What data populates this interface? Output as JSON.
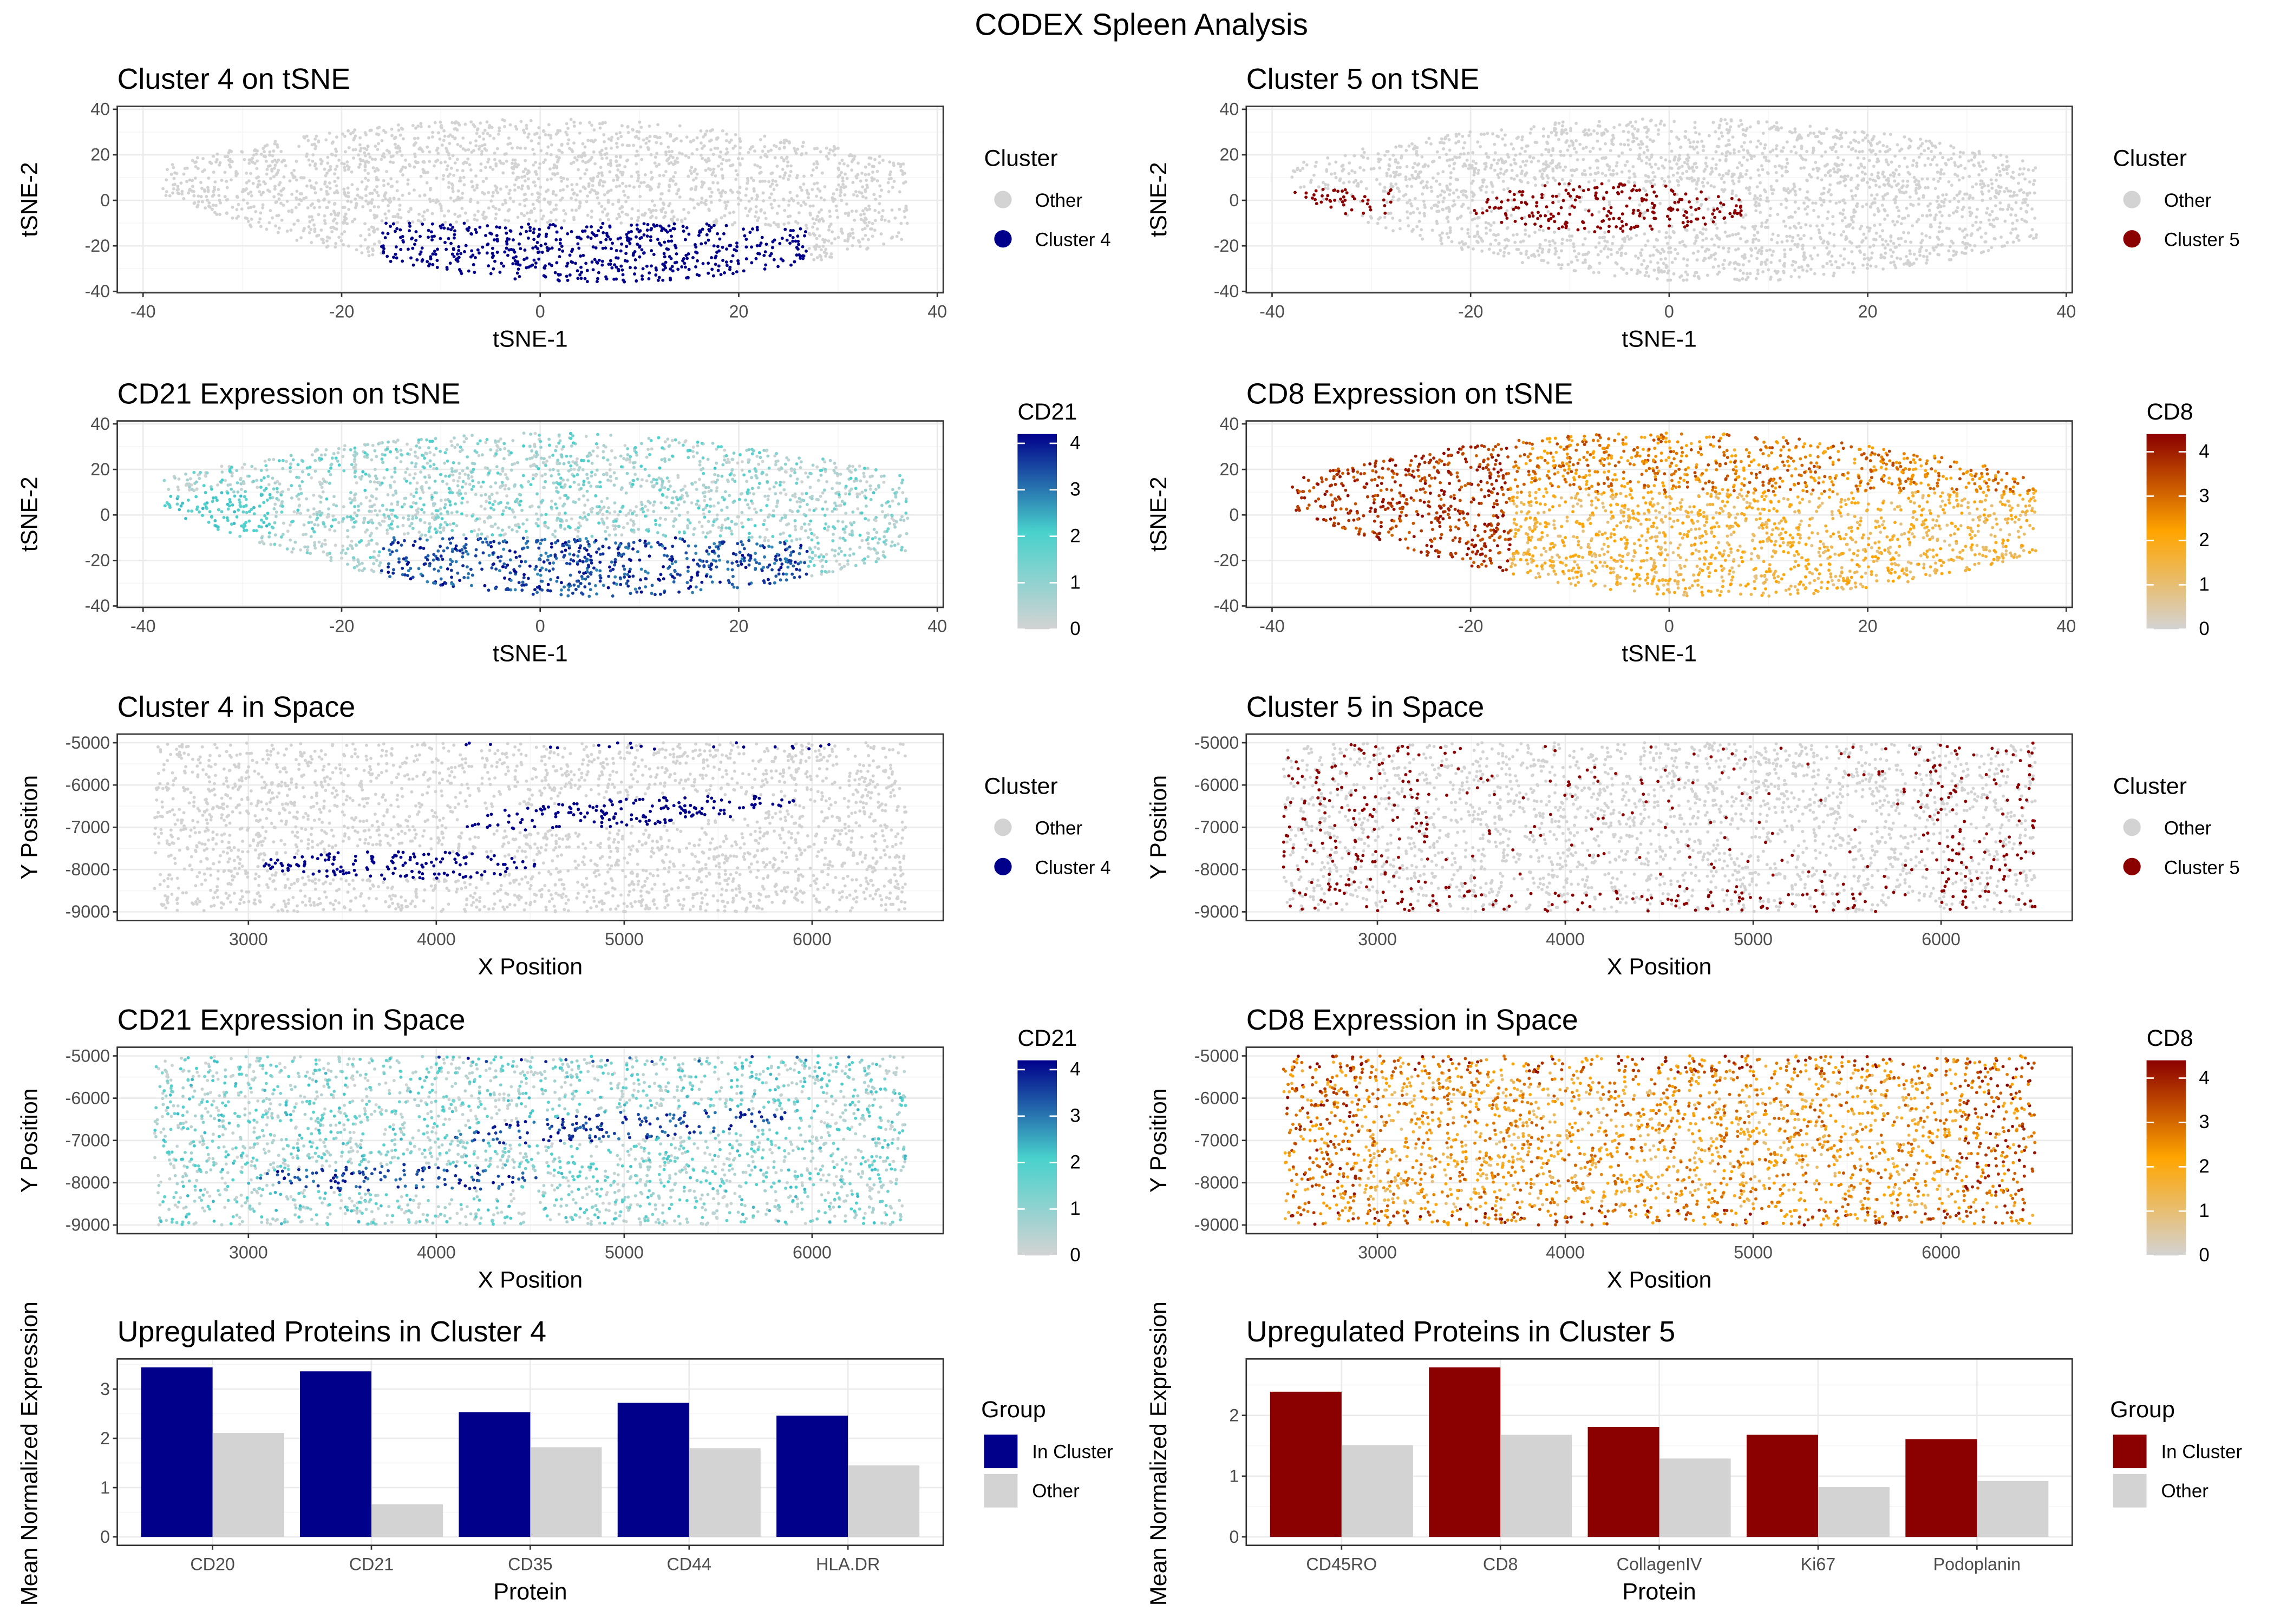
{
  "title": "CODEX Spleen Analysis",
  "colors": {
    "other": "#D3D3D3",
    "cluster4": "#00008B",
    "cluster5": "#8B0000",
    "cd21_gradient": [
      "#D3D3D3",
      "#48D1CC",
      "#00008B"
    ],
    "cd8_gradient": [
      "#D3D3D3",
      "#FFA500",
      "#8B0000"
    ],
    "panel_border": "#333333",
    "grid": "#EBEBEB"
  },
  "chart_data": [
    {
      "type": "scatter",
      "title": "Cluster 4 on tSNE",
      "xlabel": "tSNE-1",
      "ylabel": "tSNE-2",
      "xlim": [
        -40,
        40
      ],
      "ylim": [
        -40,
        40
      ],
      "xticks": [
        -40,
        -20,
        0,
        20,
        40
      ],
      "yticks": [
        -40,
        -20,
        0,
        20,
        40
      ],
      "grid": true,
      "legend_position": "right",
      "color_mode": "cluster",
      "legend": {
        "title": "Cluster",
        "entries": [
          {
            "label": "Other",
            "color": "#D3D3D3"
          },
          {
            "label": "Cluster 4",
            "color": "#00008B"
          }
        ]
      }
    },
    {
      "type": "scatter",
      "title": "Cluster 5 on tSNE",
      "xlabel": "tSNE-1",
      "ylabel": "tSNE-2",
      "xlim": [
        -40,
        40
      ],
      "ylim": [
        -40,
        40
      ],
      "xticks": [
        -40,
        -20,
        0,
        20,
        40
      ],
      "yticks": [
        -40,
        -20,
        0,
        20,
        40
      ],
      "grid": true,
      "legend_position": "right",
      "color_mode": "cluster",
      "legend": {
        "title": "Cluster",
        "entries": [
          {
            "label": "Other",
            "color": "#D3D3D3"
          },
          {
            "label": "Cluster 5",
            "color": "#8B0000"
          }
        ]
      }
    },
    {
      "type": "scatter",
      "title": "CD21 Expression on tSNE",
      "xlabel": "tSNE-1",
      "ylabel": "tSNE-2",
      "xlim": [
        -40,
        40
      ],
      "ylim": [
        -40,
        40
      ],
      "xticks": [
        -40,
        -20,
        0,
        20,
        40
      ],
      "yticks": [
        -40,
        -20,
        0,
        20,
        40
      ],
      "grid": true,
      "legend_position": "right",
      "color_mode": "gradient",
      "legend": {
        "title": "CD21",
        "range": [
          0,
          4.2
        ],
        "ticks": [
          0,
          1,
          2,
          3,
          4
        ],
        "colors": [
          "#D3D3D3",
          "#48D1CC",
          "#00008B"
        ]
      }
    },
    {
      "type": "scatter",
      "title": "CD8 Expression on tSNE",
      "xlabel": "tSNE-1",
      "ylabel": "tSNE-2",
      "xlim": [
        -40,
        40
      ],
      "ylim": [
        -40,
        40
      ],
      "xticks": [
        -40,
        -20,
        0,
        20,
        40
      ],
      "yticks": [
        -40,
        -20,
        0,
        20,
        40
      ],
      "grid": true,
      "legend_position": "right",
      "color_mode": "gradient",
      "legend": {
        "title": "CD8",
        "range": [
          0,
          4.4
        ],
        "ticks": [
          0,
          1,
          2,
          3,
          4
        ],
        "colors": [
          "#D3D3D3",
          "#FFA500",
          "#8B0000"
        ]
      }
    },
    {
      "type": "scatter",
      "title": "Cluster 4 in Space",
      "xlabel": "X Position",
      "ylabel": "Y Position",
      "xlim": [
        2500,
        6500
      ],
      "ylim": [
        -9000,
        -5000
      ],
      "xticks": [
        3000,
        4000,
        5000,
        6000
      ],
      "yticks": [
        -9000,
        -8000,
        -7000,
        -6000,
        -5000
      ],
      "grid": true,
      "legend_position": "right",
      "color_mode": "cluster",
      "legend": {
        "title": "Cluster",
        "entries": [
          {
            "label": "Other",
            "color": "#D3D3D3"
          },
          {
            "label": "Cluster 4",
            "color": "#00008B"
          }
        ]
      }
    },
    {
      "type": "scatter",
      "title": "Cluster 5 in Space",
      "xlabel": "X Position",
      "ylabel": "Y Position",
      "xlim": [
        2500,
        6500
      ],
      "ylim": [
        -9000,
        -5000
      ],
      "xticks": [
        3000,
        4000,
        5000,
        6000
      ],
      "yticks": [
        -9000,
        -8000,
        -7000,
        -6000,
        -5000
      ],
      "grid": true,
      "legend_position": "right",
      "color_mode": "cluster",
      "legend": {
        "title": "Cluster",
        "entries": [
          {
            "label": "Other",
            "color": "#D3D3D3"
          },
          {
            "label": "Cluster 5",
            "color": "#8B0000"
          }
        ]
      }
    },
    {
      "type": "scatter",
      "title": "CD21 Expression in Space",
      "xlabel": "X Position",
      "ylabel": "Y Position",
      "xlim": [
        2500,
        6500
      ],
      "ylim": [
        -9000,
        -5000
      ],
      "xticks": [
        3000,
        4000,
        5000,
        6000
      ],
      "yticks": [
        -9000,
        -8000,
        -7000,
        -6000,
        -5000
      ],
      "grid": true,
      "legend_position": "right",
      "color_mode": "gradient",
      "legend": {
        "title": "CD21",
        "range": [
          0,
          4.2
        ],
        "ticks": [
          0,
          1,
          2,
          3,
          4
        ],
        "colors": [
          "#D3D3D3",
          "#48D1CC",
          "#00008B"
        ]
      }
    },
    {
      "type": "scatter",
      "title": "CD8 Expression in Space",
      "xlabel": "X Position",
      "ylabel": "Y Position",
      "xlim": [
        2500,
        6500
      ],
      "ylim": [
        -9000,
        -5000
      ],
      "xticks": [
        3000,
        4000,
        5000,
        6000
      ],
      "yticks": [
        -9000,
        -8000,
        -7000,
        -6000,
        -5000
      ],
      "grid": true,
      "legend_position": "right",
      "color_mode": "gradient",
      "legend": {
        "title": "CD8",
        "range": [
          0,
          4.4
        ],
        "ticks": [
          0,
          1,
          2,
          3,
          4
        ],
        "colors": [
          "#D3D3D3",
          "#FFA500",
          "#8B0000"
        ]
      }
    },
    {
      "type": "bar",
      "title": "Upregulated Proteins in Cluster 4",
      "xlabel": "Protein",
      "ylabel": "Mean Normalized Expression",
      "yticks": [
        0,
        1,
        2,
        3
      ],
      "grid": true,
      "legend_position": "right",
      "categories": [
        "CD20",
        "CD21",
        "CD35",
        "CD44",
        "HLA.DR"
      ],
      "legend": {
        "title": "Group"
      },
      "series": [
        {
          "name": "In Cluster",
          "color": "#00008B",
          "values": [
            3.44,
            3.36,
            2.53,
            2.72,
            2.46
          ]
        },
        {
          "name": "Other",
          "color": "#D3D3D3",
          "values": [
            2.11,
            0.66,
            1.82,
            1.8,
            1.45
          ]
        }
      ]
    },
    {
      "type": "bar",
      "title": "Upregulated Proteins in Cluster 5",
      "xlabel": "Protein",
      "ylabel": "Mean Normalized Expression",
      "yticks": [
        0,
        1,
        2
      ],
      "grid": true,
      "legend_position": "right",
      "categories": [
        "CD45RO",
        "CD8",
        "CollagenIV",
        "Ki67",
        "Podoplanin"
      ],
      "legend": {
        "title": "Group"
      },
      "series": [
        {
          "name": "In Cluster",
          "color": "#8B0000",
          "values": [
            2.39,
            2.79,
            1.81,
            1.68,
            1.61
          ]
        },
        {
          "name": "Other",
          "color": "#D3D3D3",
          "values": [
            1.51,
            1.68,
            1.29,
            0.82,
            0.92
          ]
        }
      ]
    }
  ]
}
